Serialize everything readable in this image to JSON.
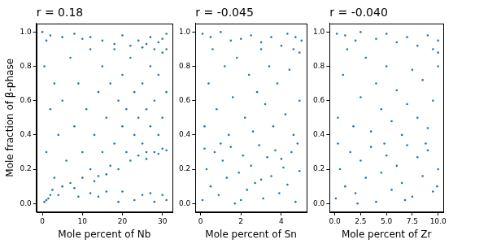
{
  "chart_data": [
    {
      "type": "scatter",
      "title": "r = 0.18",
      "x_label": "Mole percent of Nb",
      "y_label": "Mole fraction of β-phase",
      "color": "#1f77b4",
      "marker": "circle",
      "grid": false,
      "xlim": [
        -1.5,
        32.5
      ],
      "ylim": [
        -0.05,
        1.05
      ],
      "xticks": [
        0,
        10,
        20,
        30
      ],
      "yticks": [
        {
          "value": 0,
          "label": "0.0"
        },
        {
          "value": 0.2,
          "label": "0.2"
        },
        {
          "value": 0.4,
          "label": "0.4"
        },
        {
          "value": 0.6,
          "label": "0.6"
        },
        {
          "value": 0.8,
          "label": "0.8"
        },
        {
          "value": 1,
          "label": "1.0"
        }
      ],
      "x": [
        0.5,
        1,
        1.5,
        2,
        2.5,
        3,
        1,
        2,
        0.5,
        1,
        3,
        4,
        5,
        5,
        6,
        7,
        7,
        8,
        9,
        10,
        10,
        11,
        12,
        12,
        13,
        14,
        14,
        15,
        15,
        16,
        17,
        17,
        18,
        18,
        19,
        19,
        20,
        20,
        21,
        21,
        22,
        22,
        23,
        23,
        24,
        24,
        25,
        25,
        26,
        26,
        27,
        27,
        28,
        28,
        29,
        29,
        30,
        30,
        31,
        31,
        26,
        29,
        16,
        13,
        8,
        4,
        0,
        2,
        5,
        8,
        10,
        12,
        15,
        18,
        20,
        22,
        24,
        25,
        27,
        28,
        29,
        30,
        31,
        31,
        26,
        30,
        9,
        12,
        14,
        19,
        20,
        23,
        25,
        28,
        30,
        27,
        31,
        16
      ],
      "values": [
        0.01,
        0.02,
        0.03,
        0.05,
        0.08,
        0.15,
        0.3,
        0.55,
        0.8,
        0.95,
        0.7,
        0.4,
        0.1,
        0.6,
        0.25,
        0.85,
        0.12,
        0.45,
        0.7,
        0.15,
        0.3,
        0.55,
        0.9,
        0.2,
        0.4,
        0.65,
        0.16,
        0.3,
        0.8,
        0.5,
        0.22,
        0.7,
        0.35,
        0.9,
        0.6,
        0.2,
        0.45,
        0.75,
        0.3,
        0.55,
        0.25,
        0.85,
        0.4,
        0.65,
        0.28,
        0.5,
        0.35,
        0.7,
        0.3,
        0.55,
        0.45,
        0.8,
        0.3,
        0.6,
        0.4,
        0.75,
        0.32,
        0.5,
        0.31,
        0.65,
        0.26,
        0.29,
        0.17,
        0.13,
        0.09,
        0.05,
        1.0,
        0.98,
        0.97,
        0.99,
        0.96,
        0.97,
        0.95,
        0.93,
        0.98,
        0.92,
        0.95,
        0.91,
        0.97,
        0.9,
        0.94,
        0.88,
        0.99,
        0.9,
        0.93,
        0.96,
        0.04,
        0.06,
        0.04,
        0.01,
        0.07,
        0.02,
        0.05,
        0.01,
        0.05,
        0.06,
        0.02,
        0.07
      ]
    },
    {
      "type": "scatter",
      "title": "r = -0.045",
      "x_label": "Mole percent of Sn",
      "color": "#1f77b4",
      "marker": "circle",
      "grid": false,
      "xlim": [
        -0.25,
        5.25
      ],
      "ylim": [
        -0.05,
        1.05
      ],
      "xticks": [
        0,
        2,
        4
      ],
      "yticks": [
        {
          "value": 0,
          "label": "0.0"
        },
        {
          "value": 0.2,
          "label": "0.2"
        },
        {
          "value": 0.4,
          "label": "0.4"
        },
        {
          "value": 0.6,
          "label": "0.6"
        },
        {
          "value": 0.8,
          "label": "0.8"
        },
        {
          "value": 1,
          "label": "1.0"
        }
      ],
      "x": [
        0.1,
        0.3,
        0.5,
        0.7,
        0.9,
        1.1,
        1.3,
        1.5,
        1.7,
        1.9,
        2.1,
        2.3,
        2.5,
        2.7,
        2.9,
        3.1,
        3.3,
        3.5,
        3.7,
        3.9,
        4.1,
        4.3,
        4.5,
        4.7,
        4.9,
        0.2,
        1.0,
        2.0,
        3.0,
        4.0,
        4.8,
        0.2,
        0.4,
        0.6,
        0.8,
        1.2,
        1.4,
        1.6,
        1.8,
        2.2,
        2.4,
        2.6,
        2.8,
        3.2,
        3.4,
        3.6,
        3.8,
        4.2,
        4.4,
        4.6,
        4.9,
        3.0,
        1.5,
        0.1,
        0.5,
        1.0,
        2.0,
        2.5,
        3.0,
        3.5,
        4.0,
        4.3,
        4.6,
        4.9,
        5.0,
        4.7
      ],
      "values": [
        0.02,
        0.2,
        0.1,
        0.3,
        0.05,
        0.25,
        0.15,
        0.33,
        0.0,
        0.18,
        0.28,
        0.08,
        0.22,
        0.12,
        0.34,
        0.03,
        0.27,
        0.16,
        0.31,
        0.06,
        0.21,
        0.11,
        0.3,
        0.01,
        0.19,
        0.32,
        0.35,
        0.02,
        0.14,
        0.26,
        0.35,
        0.45,
        0.7,
        0.9,
        0.55,
        0.8,
        0.4,
        0.62,
        0.85,
        0.5,
        0.75,
        0.42,
        0.65,
        0.58,
        0.8,
        0.45,
        0.7,
        0.52,
        0.78,
        0.4,
        0.6,
        0.9,
        0.95,
        0.99,
        0.97,
        1.0,
        0.96,
        0.98,
        0.94,
        0.97,
        0.92,
        0.99,
        0.9,
        0.88,
        0.95,
        0.97
      ]
    },
    {
      "type": "scatter",
      "title": "r = -0.040",
      "x_label": "Mole percent of Zr",
      "color": "#1f77b4",
      "marker": "circle",
      "grid": false,
      "xlim": [
        -0.5,
        10.5
      ],
      "ylim": [
        -0.05,
        1.05
      ],
      "xticks": [
        {
          "value": 0,
          "label": "0.0"
        },
        {
          "value": 2.5,
          "label": "2.5"
        },
        {
          "value": 5,
          "label": "5.0"
        },
        {
          "value": 7.5,
          "label": "7.5"
        },
        {
          "value": 10,
          "label": "10.0"
        }
      ],
      "yticks": [
        {
          "value": 0,
          "label": "0.0"
        },
        {
          "value": 0.2,
          "label": "0.2"
        },
        {
          "value": 0.4,
          "label": "0.4"
        },
        {
          "value": 0.6,
          "label": "0.6"
        },
        {
          "value": 0.8,
          "label": "0.8"
        },
        {
          "value": 1,
          "label": "1.0"
        }
      ],
      "x": [
        0.1,
        0.5,
        1,
        1.5,
        2,
        2.5,
        3,
        3.5,
        4,
        4.5,
        5,
        5.5,
        6,
        6.5,
        7,
        7.5,
        8,
        8.5,
        9,
        9.5,
        10,
        0.3,
        2.2,
        4.8,
        6.8,
        8.8,
        9.9,
        0.3,
        0.8,
        1.2,
        1.8,
        2.5,
        3,
        3.5,
        4,
        4.5,
        5,
        5.5,
        6,
        6.5,
        7,
        7.5,
        8,
        8.5,
        9,
        9.5,
        10,
        2,
        0.2,
        1,
        2.5,
        4,
        5,
        6,
        7,
        8,
        9,
        9.5,
        10,
        10
      ],
      "values": [
        0.03,
        0.2,
        0.1,
        0.3,
        0.06,
        0.25,
        0.15,
        0.33,
        0.01,
        0.18,
        0.28,
        0.08,
        0.22,
        0.12,
        0.34,
        0.04,
        0.27,
        0.16,
        0.31,
        0.07,
        0.2,
        0.35,
        0.0,
        0.35,
        0.02,
        0.35,
        0.1,
        0.5,
        0.75,
        0.9,
        0.45,
        0.62,
        0.85,
        0.42,
        0.7,
        0.55,
        0.8,
        0.48,
        0.66,
        0.4,
        0.58,
        0.78,
        0.5,
        0.72,
        0.44,
        0.6,
        0.8,
        0.95,
        0.99,
        0.98,
        1.0,
        0.96,
        0.99,
        0.94,
        0.97,
        0.92,
        0.98,
        0.9,
        0.95,
        0.88
      ]
    }
  ]
}
